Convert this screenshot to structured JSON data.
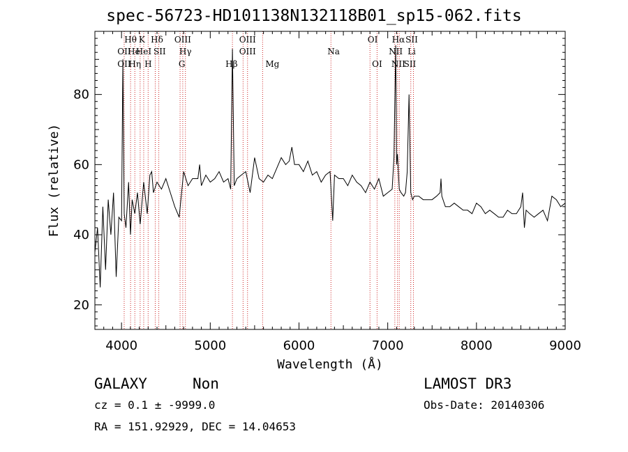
{
  "chart_data": {
    "type": "line",
    "title": "spec-56723-HD101138N132118B01_sp15-062.fits",
    "xlabel": "Wavelength (Å)",
    "ylabel": "Flux (relative)",
    "xlim": [
      3700,
      9000
    ],
    "ylim": [
      13,
      98
    ],
    "xticks": [
      4000,
      5000,
      6000,
      7000,
      8000,
      9000
    ],
    "yticks": [
      20,
      40,
      60,
      80
    ],
    "grid": false,
    "series": [
      {
        "x": [
          3700,
          3730,
          3760,
          3790,
          3820,
          3850,
          3880,
          3910,
          3940,
          3970,
          4000,
          4015,
          4030,
          4050,
          4080,
          4101,
          4120,
          4150,
          4180,
          4210,
          4250,
          4290,
          4320,
          4340,
          4360,
          4400,
          4450,
          4500,
          4550,
          4600,
          4650,
          4700,
          4750,
          4800,
          4861,
          4880,
          4900,
          4950,
          5000,
          5050,
          5100,
          5150,
          5200,
          5230,
          5250,
          5270,
          5300,
          5350,
          5400,
          5450,
          5500,
          5550,
          5600,
          5650,
          5700,
          5750,
          5800,
          5850,
          5890,
          5920,
          5950,
          6000,
          6050,
          6100,
          6150,
          6200,
          6250,
          6300,
          6350,
          6380,
          6400,
          6450,
          6500,
          6550,
          6600,
          6650,
          6700,
          6750,
          6800,
          6850,
          6900,
          6950,
          7000,
          7050,
          7070,
          7090,
          7100,
          7110,
          7130,
          7150,
          7180,
          7200,
          7220,
          7240,
          7260,
          7280,
          7300,
          7350,
          7400,
          7450,
          7500,
          7550,
          7590,
          7600,
          7610,
          7650,
          7700,
          7750,
          7800,
          7850,
          7900,
          7950,
          8000,
          8050,
          8100,
          8150,
          8200,
          8250,
          8300,
          8350,
          8400,
          8450,
          8500,
          8520,
          8540,
          8560,
          8600,
          8650,
          8700,
          8750,
          8800,
          8850,
          8900,
          8950,
          9000
        ],
        "values": [
          35,
          42,
          25,
          48,
          30,
          50,
          40,
          52,
          28,
          45,
          44,
          90,
          46,
          42,
          55,
          40,
          50,
          46,
          52,
          43,
          55,
          46,
          57,
          58,
          52,
          55,
          53,
          56,
          52,
          48,
          45,
          58,
          54,
          56,
          56,
          60,
          54,
          57,
          55,
          56,
          58,
          55,
          56,
          53,
          93,
          54,
          56,
          57,
          58,
          52,
          62,
          56,
          55,
          57,
          56,
          59,
          62,
          60,
          61,
          65,
          60,
          60,
          58,
          61,
          57,
          58,
          55,
          57,
          58,
          44,
          57,
          56,
          56,
          54,
          57,
          55,
          54,
          52,
          55,
          53,
          56,
          51,
          52,
          53,
          62,
          94,
          60,
          63,
          53,
          52,
          51,
          52,
          58,
          80,
          52,
          50,
          51,
          51,
          50,
          50,
          50,
          51,
          52,
          56,
          51,
          48,
          48,
          49,
          48,
          47,
          47,
          46,
          49,
          48,
          46,
          47,
          46,
          45,
          45,
          47,
          46,
          46,
          48,
          52,
          42,
          47,
          46,
          45,
          46,
          47,
          44,
          51,
          50,
          48,
          49
        ]
      }
    ],
    "lines": [
      {
        "label": "Hθ",
        "x": 4102,
        "row": 1
      },
      {
        "label": "OII",
        "x": 4030,
        "row": 2
      },
      {
        "label": "OII",
        "x": 4030,
        "row": 3
      },
      {
        "label": "He",
        "x": 4140,
        "row": 2
      },
      {
        "label": "Hη",
        "x": 4150,
        "row": 3
      },
      {
        "label": "K",
        "x": 4230,
        "row": 1
      },
      {
        "label": "HeI",
        "x": 4250,
        "row": 2
      },
      {
        "label": "H",
        "x": 4300,
        "row": 3
      },
      {
        "label": "Hδ",
        "x": 4400,
        "row": 1
      },
      {
        "label": "SII",
        "x": 4430,
        "row": 2
      },
      {
        "label": "OIII",
        "x": 4690,
        "row": 1
      },
      {
        "label": "Hγ",
        "x": 4720,
        "row": 2
      },
      {
        "label": "G",
        "x": 4680,
        "row": 3
      },
      {
        "label": "Hβ",
        "x": 5240,
        "row": 3
      },
      {
        "label": "OIII",
        "x": 5420,
        "row": 1
      },
      {
        "label": "OIII",
        "x": 5420,
        "row": 2
      },
      {
        "label": "Mg",
        "x": 5700,
        "row": 3
      },
      {
        "label": "Na",
        "x": 6390,
        "row": 2
      },
      {
        "label": "OI",
        "x": 6830,
        "row": 1
      },
      {
        "label": "OI",
        "x": 6880,
        "row": 3
      },
      {
        "label": "Hα",
        "x": 7120,
        "row": 1
      },
      {
        "label": "SII",
        "x": 7270,
        "row": 1
      },
      {
        "label": "NII",
        "x": 7090,
        "row": 2
      },
      {
        "label": "Li",
        "x": 7270,
        "row": 2
      },
      {
        "label": "NII",
        "x": 7120,
        "row": 3
      },
      {
        "label": "SII",
        "x": 7250,
        "row": 3
      }
    ],
    "line_positions": [
      4030,
      4102,
      4150,
      4210,
      4250,
      4300,
      4380,
      4420,
      4660,
      4690,
      4720,
      5250,
      5370,
      5420,
      5590,
      6360,
      6800,
      6880,
      7080,
      7110,
      7130,
      7260,
      7290
    ]
  },
  "info": {
    "object_class": "GALAXY",
    "subclass": "Non",
    "survey": "LAMOST DR3",
    "cz": "cz = 0.1 ± -9999.0",
    "obs_date": "Obs-Date: 20140306",
    "coords": "RA = 151.92929, DEC =  14.04653"
  },
  "colors": {
    "line_marker": "#cc2222",
    "spectrum": "#000000",
    "axes": "#000000"
  }
}
